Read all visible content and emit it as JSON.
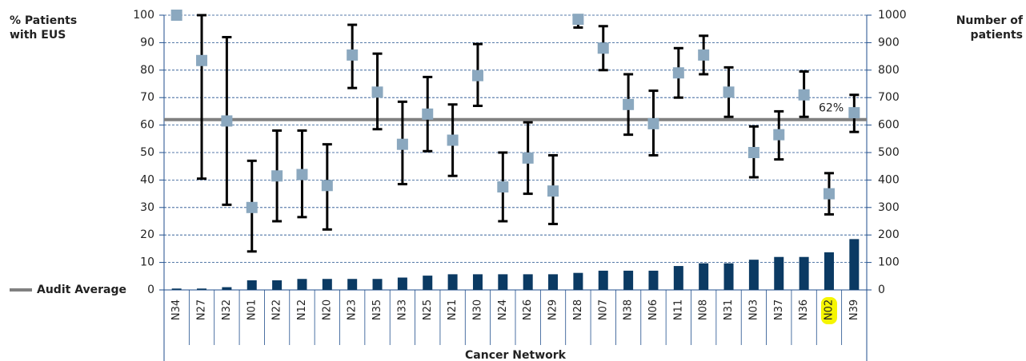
{
  "chart_data": {
    "type": "bar-errorbar",
    "ylabel": [
      "% Patients",
      "with EUS"
    ],
    "y2label": [
      "Number of",
      "patients"
    ],
    "xlabel": "Cancer Network",
    "categories": [
      "N34",
      "N27",
      "N32",
      "N01",
      "N22",
      "N12",
      "N20",
      "N23",
      "N35",
      "N33",
      "N25",
      "N21",
      "N30",
      "N24",
      "N26",
      "N29",
      "N28",
      "N07",
      "N38",
      "N06",
      "N11",
      "N08",
      "N31",
      "N03",
      "N37",
      "N36",
      "N02",
      "N39"
    ],
    "highlight_index": 26,
    "highlight_color": "#f5f500",
    "series": [
      {
        "name": "% Patients with EUS",
        "type": "errorbar",
        "color": "#8ba8bf",
        "values": [
          100,
          83.5,
          61.5,
          30,
          41.5,
          42,
          38,
          85.5,
          72,
          53,
          64,
          54.5,
          78,
          37.5,
          48,
          36,
          98.5,
          88,
          67.5,
          60.5,
          79,
          85.5,
          72,
          50,
          56.5,
          71,
          35,
          64.5
        ],
        "low": [
          null,
          40.5,
          31,
          14,
          25,
          26.5,
          22,
          73.5,
          58.5,
          38.5,
          50.5,
          41.5,
          67,
          25,
          35,
          24,
          95.5,
          80,
          56.5,
          49,
          70,
          78.5,
          63,
          41,
          47.5,
          63,
          27.5,
          57.5
        ],
        "high": [
          null,
          100,
          92,
          47,
          58,
          58,
          53,
          96.5,
          86,
          68.5,
          77.5,
          67.5,
          89.5,
          50,
          61,
          49,
          100,
          96,
          78.5,
          72.5,
          88,
          92.5,
          81,
          59.5,
          65,
          79.5,
          42.5,
          71
        ]
      },
      {
        "name": "Number of patients",
        "type": "bar",
        "axis": "y2",
        "color": "#0b3a63",
        "values": [
          5,
          5,
          10,
          35,
          35,
          40,
          40,
          40,
          40,
          45,
          52,
          57,
          57,
          57,
          57,
          57,
          62,
          70,
          70,
          70,
          87,
          97,
          97,
          110,
          120,
          120,
          137,
          185
        ]
      }
    ],
    "average": 62,
    "average_label": "62%",
    "average_name": "Audit Average",
    "average_color": "#808080",
    "ylim": [
      0,
      100
    ],
    "yticks": [
      0,
      10,
      20,
      30,
      40,
      50,
      60,
      70,
      80,
      90,
      100
    ],
    "y2lim": [
      0,
      1000
    ],
    "y2ticks": [
      0,
      100,
      200,
      300,
      400,
      500,
      600,
      700,
      800,
      900,
      1000
    ],
    "grid": true
  }
}
